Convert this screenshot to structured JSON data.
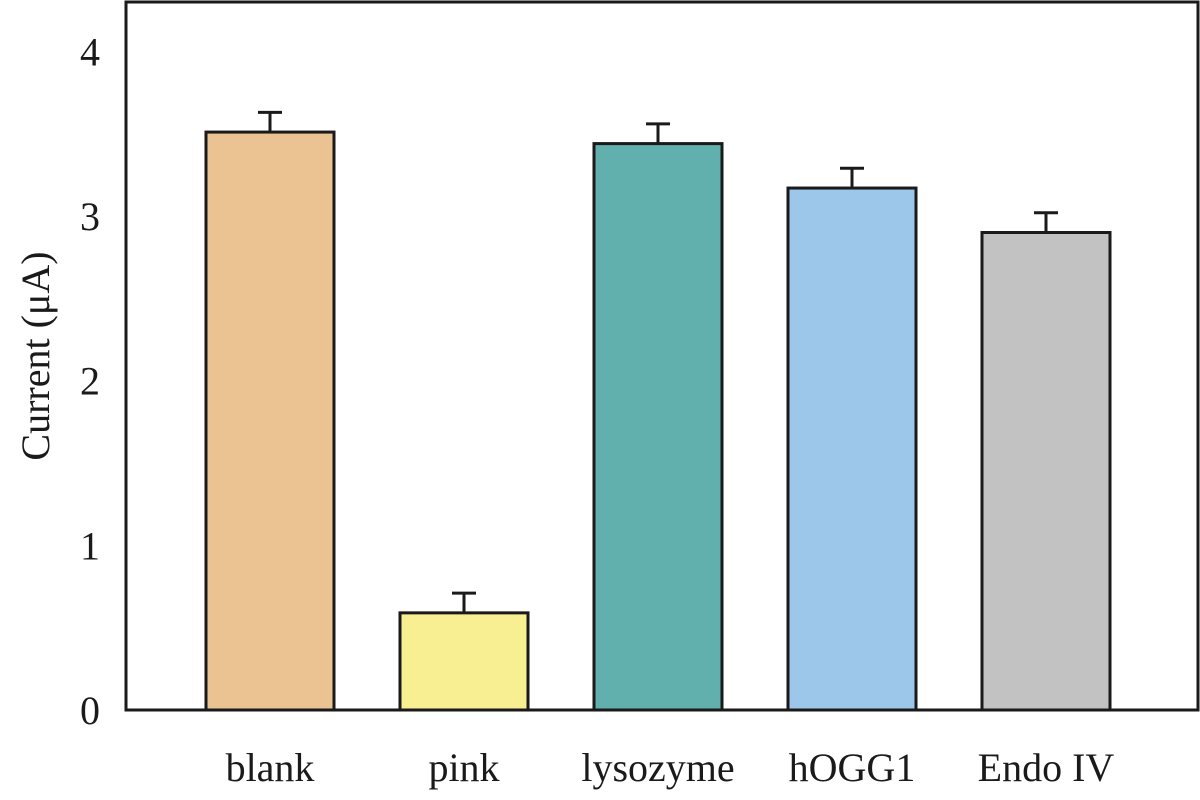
{
  "chart_data": {
    "type": "bar",
    "title": "",
    "xlabel": "",
    "ylabel": "Current (μA)",
    "ylim": [
      0,
      4.3
    ],
    "yticks": [
      "0",
      "1",
      "2",
      "3",
      "4"
    ],
    "grid": false,
    "categories": [
      "blank",
      "pink",
      "lysozyme",
      "hOGG1",
      "Endo IV"
    ],
    "values": [
      3.51,
      0.59,
      3.44,
      3.17,
      2.9
    ],
    "errors": [
      0.12,
      0.12,
      0.12,
      0.12,
      0.12
    ],
    "colors": [
      "#EBC393",
      "#F8EE92",
      "#62B0AE",
      "#9DC6EB",
      "#C2C2C2"
    ]
  }
}
